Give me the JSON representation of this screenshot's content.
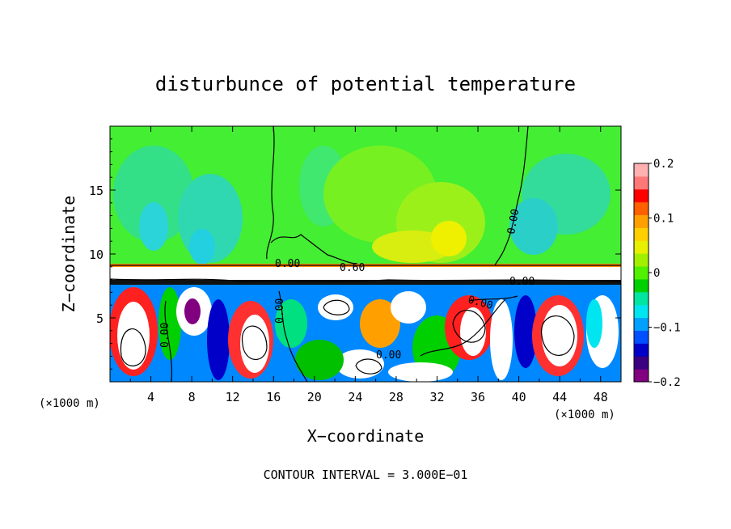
{
  "chart_data": {
    "type": "heatmap",
    "title": "disturbunce of potential temperature",
    "xlabel": "X−coordinate",
    "ylabel": "Z−coordinate",
    "x_unit_label": "(×1000 m)",
    "x_unit_label_right": "(×1000 m)",
    "footer": "CONTOUR INTERVAL = 3.000E−01",
    "xlim": [
      0,
      50
    ],
    "ylim": [
      0,
      20
    ],
    "x_ticks": [
      4,
      8,
      12,
      16,
      20,
      24,
      28,
      32,
      36,
      40,
      44,
      48
    ],
    "y_ticks": [
      5,
      10,
      15
    ],
    "colorbar": {
      "range": [
        -0.2,
        0.2
      ],
      "tick_values": [
        0.2,
        0.1,
        0,
        -0.1,
        -0.2
      ],
      "tick_labels": [
        "0.2",
        "0.1",
        "0",
        "−0.1",
        "−0.2"
      ],
      "colors": [
        "#800080",
        "#3a007f",
        "#0000c8",
        "#0050ff",
        "#00a0ff",
        "#00e6f0",
        "#00e6a0",
        "#00d000",
        "#50f000",
        "#a0f000",
        "#e6f000",
        "#ffd000",
        "#ffa000",
        "#ff6000",
        "#ff0000",
        "#ff7878",
        "#ffb0b0"
      ]
    },
    "contour_labels": [
      "0.00",
      "0.00",
      "0.60",
      "0.00",
      "0.00",
      "0.00",
      "0.00",
      "0.00"
    ]
  }
}
